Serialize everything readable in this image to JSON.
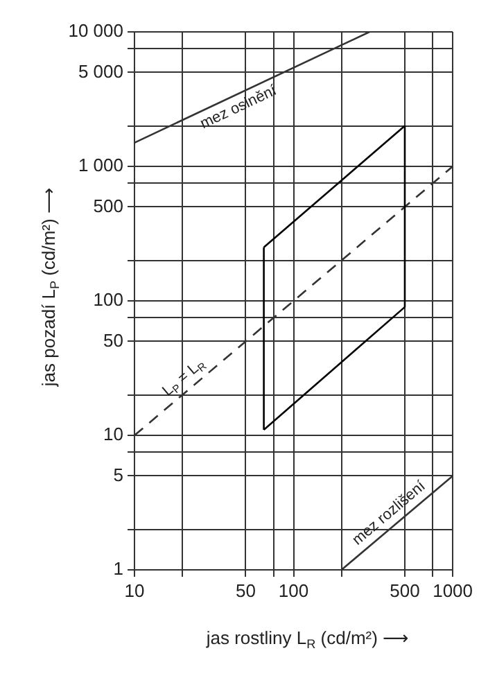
{
  "chart_data": {
    "type": "line",
    "xlabel": "jas rostliny L$_{R}$ (cd/m²) ⟶",
    "ylabel": "jas pozadí L$_{P}$ (cd/m²) ⟶",
    "log": "xy",
    "grid": true,
    "legend": false,
    "marker": "none",
    "xlim": [
      10,
      1000
    ],
    "ylim": [
      1,
      10000
    ],
    "xticks": [
      10,
      {
        "value": 20,
        "label": null
      },
      50,
      {
        "value": 75,
        "label": null
      },
      100,
      {
        "value": 200,
        "label": null
      },
      500,
      {
        "value": 750,
        "label": null
      },
      1000
    ],
    "yticks": [
      1,
      {
        "value": 2,
        "label": null
      },
      5,
      {
        "value": 7.5,
        "label": null
      },
      10,
      {
        "value": 20,
        "label": null
      },
      50,
      {
        "value": 75,
        "label": null
      },
      100,
      {
        "value": 200,
        "label": null
      },
      500,
      {
        "value": 750,
        "label": null
      },
      {
        "value": 1000,
        "label": "1 000"
      },
      {
        "value": 2000,
        "label": null
      },
      {
        "value": 5000,
        "label": "5 000"
      },
      {
        "value": 7500,
        "label": null
      },
      {
        "value": 10000,
        "label": "10 000"
      }
    ],
    "series": [
      {
        "color": "#000000",
        "x": [
          65,
          500
        ],
        "values": [
          250,
          2000
        ]
      },
      {
        "color": "#000000",
        "x": [
          65,
          500
        ],
        "values": [
          11,
          90
        ]
      },
      {
        "color": "#000000",
        "x": [
          65,
          65
        ],
        "values": [
          11,
          250
        ]
      },
      {
        "color": "#000000",
        "x": [
          500,
          500
        ],
        "values": [
          90,
          2000
        ]
      },
      {
        "name": "L$_{P}$ = L$_{R}$",
        "color": "#333333",
        "line_style": "dashed",
        "x": [
          10,
          1000
        ],
        "values": [
          10,
          1000
        ]
      },
      {
        "name": "mez oslnění",
        "color": "#333333",
        "x": [
          10,
          300
        ],
        "values": [
          1500,
          10000
        ]
      },
      {
        "name": "mez rozlišení",
        "color": "#333333",
        "x": [
          200,
          1000
        ],
        "values": [
          1,
          5
        ]
      }
    ]
  }
}
